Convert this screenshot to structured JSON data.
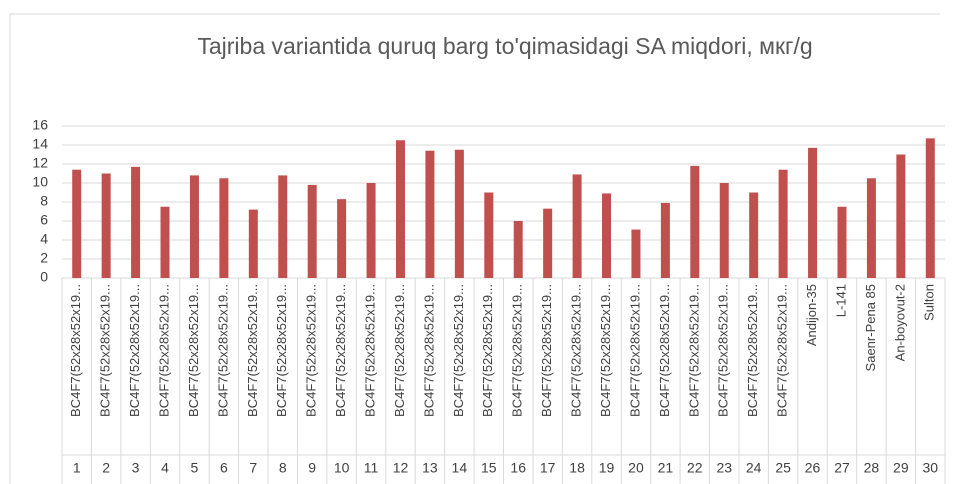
{
  "chart_data": {
    "type": "bar",
    "title": "Tajriba variantida quruq barg to'qimasidagi SA miqdori, мкг/g",
    "categories": [
      "BC4F7(52x28x52x19...",
      "BC4F7(52x28x52x19...",
      "BC4F7(52x28x52x19...",
      "BC4F7(52x28x52x19...",
      "BC4F7(52x28x52x19...",
      "BC4F7(52x28x52x19...",
      "BC4F7(52x28x52x19...",
      "BC4F7(52x28x52x19...",
      "BC4F7(52x28x52x19...",
      "BC4F7(52x28x52x19...",
      "BC4F7(52x28x52x19...",
      "BC4F7(52x28x52x19...",
      "BC4F7(52x28x52x19...",
      "BC4F7(52x28x52x19...",
      "BC4F7(52x28x52x19...",
      "BC4F7(52x28x52x19...",
      "BC4F7(52x28x52x19...",
      "BC4F7(52x28x52x19...",
      "BC4F7(52x28x52x19...",
      "BC4F7(52x28x52x19...",
      "BC4F7(52x28x52x19...",
      "BC4F7(52x28x52x19...",
      "BC4F7(52x28x52x19...",
      "BC4F7(52x28x52x19...",
      "BC4F7(52x28x52x19...",
      "Andijon-35",
      "L-141",
      "Saenr-Pena 85",
      "An-boyovut-2",
      "Sulton"
    ],
    "category_numbers": [
      1,
      2,
      3,
      4,
      5,
      6,
      7,
      8,
      9,
      10,
      11,
      12,
      13,
      14,
      15,
      16,
      17,
      18,
      19,
      20,
      21,
      22,
      23,
      24,
      25,
      26,
      27,
      28,
      29,
      30
    ],
    "values": [
      11.4,
      11.0,
      11.7,
      7.5,
      10.8,
      10.5,
      7.2,
      10.8,
      9.8,
      8.3,
      10.0,
      14.5,
      13.4,
      13.5,
      9.0,
      6.0,
      7.3,
      10.9,
      8.9,
      5.1,
      7.9,
      11.8,
      10.0,
      9.0,
      11.4,
      13.7,
      7.5,
      10.5,
      13.0,
      14.7
    ],
    "color": "#c0504d",
    "ylim": [
      0,
      16
    ],
    "yticks": [
      0,
      2,
      4,
      6,
      8,
      10,
      12,
      14,
      16
    ],
    "grid": true
  }
}
